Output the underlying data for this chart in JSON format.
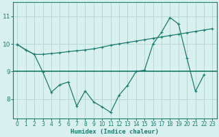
{
  "line1_x": [
    0,
    1,
    2,
    3,
    4,
    5,
    6,
    7,
    8,
    9,
    10,
    11,
    12,
    13,
    14,
    15,
    16,
    17,
    18,
    19,
    20,
    21,
    22,
    23
  ],
  "line1_y": [
    9.98,
    9.78,
    9.62,
    9.62,
    9.65,
    9.68,
    9.72,
    9.75,
    9.78,
    9.82,
    9.88,
    9.95,
    10.0,
    10.05,
    10.1,
    10.15,
    10.2,
    10.25,
    10.3,
    10.35,
    10.4,
    10.45,
    10.5,
    10.55
  ],
  "line2_x": [
    0,
    1,
    2,
    3,
    4,
    5,
    6,
    7,
    8,
    9,
    10,
    11,
    12,
    13,
    14,
    15,
    16,
    17,
    18,
    19,
    20,
    21,
    22
  ],
  "line2_y": [
    9.98,
    9.78,
    9.62,
    8.98,
    8.25,
    8.52,
    8.62,
    7.75,
    8.3,
    7.9,
    7.72,
    7.52,
    8.15,
    8.5,
    9.0,
    9.05,
    10.0,
    10.42,
    10.95,
    10.72,
    9.48,
    8.28,
    8.88
  ],
  "hline_y": 9.0,
  "color": "#1a7a6e",
  "bg_color": "#d8f0ee",
  "grid_color": "#b8d8d4",
  "xlabel": "Humidex (Indice chaleur)",
  "yticks": [
    8,
    9,
    10,
    11
  ],
  "xticks": [
    0,
    1,
    2,
    3,
    4,
    5,
    6,
    7,
    8,
    9,
    10,
    11,
    12,
    13,
    14,
    15,
    16,
    17,
    18,
    19,
    20,
    21,
    22,
    23
  ],
  "ylim": [
    7.3,
    11.5
  ],
  "xlim": [
    -0.5,
    23.5
  ]
}
